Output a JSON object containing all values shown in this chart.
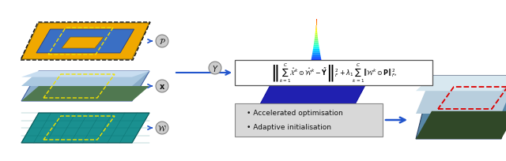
{
  "bg_color": "#ffffff",
  "formula_text": "$\\left\\|\\sum_{k=1}^{C} \\hat{\\mathcal{X}}^k \\odot \\hat{\\mathcal{W}}^k - \\tilde{\\mathbf{Y}}\\right\\|_F^2 + \\lambda_1 \\sum_{k=1}^{C} \\left\\|\\mathcal{W}^k \\odot \\mathbf{P}\\right\\|_{F}^2,$",
  "bullet1": "Accelerated optimisation",
  "bullet2": "Adaptive initialisation",
  "label_P": "$\\mathcal{P}$",
  "label_x": "$\\mathbf{x}$",
  "label_w": "$\\mathcal{W}$",
  "label_Y": "$Y$",
  "arrow_color": "#2255cc",
  "layer_blue": "#3a6fc4",
  "layer_gold": "#f0a800",
  "dashed_box_color": "#f0e000",
  "red_dash_color": "#dd0000",
  "teal_color": "#1a9090",
  "formula_box_bg": "#ffffff",
  "bullet_box_bg": "#d8d8d8"
}
